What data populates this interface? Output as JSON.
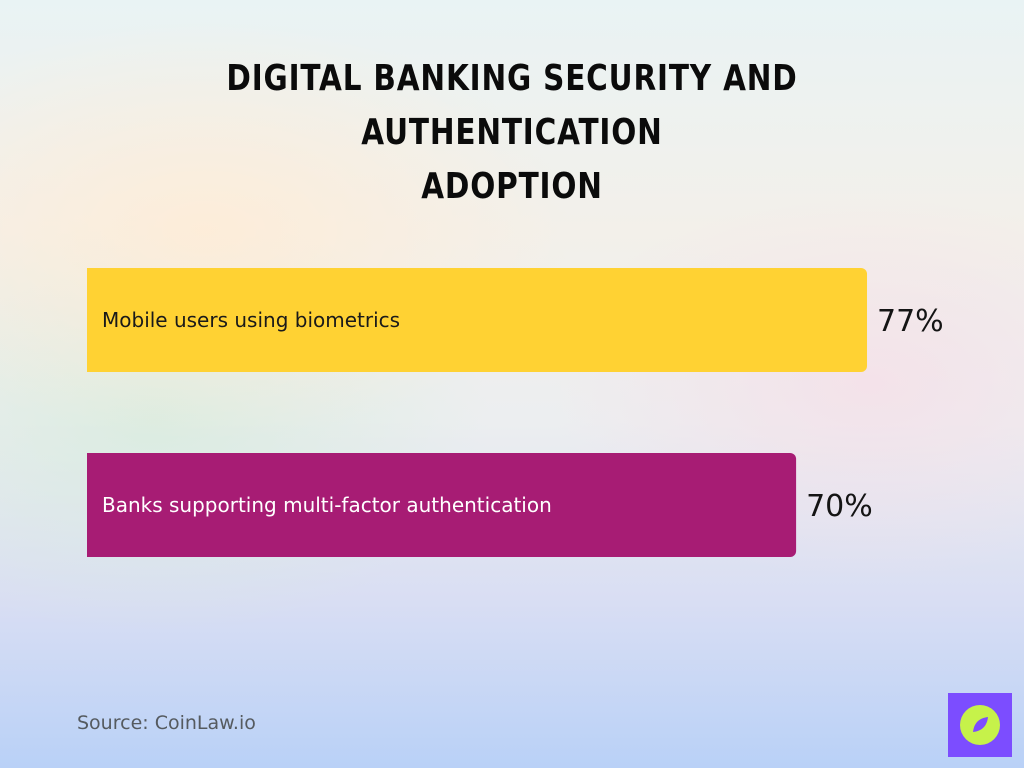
{
  "chart_data": {
    "type": "bar",
    "orientation": "horizontal",
    "title": "Digital Banking Security and Authentication Adoption",
    "categories": [
      "Mobile users using biometrics",
      "Banks supporting multi-factor authentication"
    ],
    "values": [
      77,
      70
    ],
    "value_labels": [
      "77%",
      "70%"
    ],
    "unit": "%",
    "xlim": [
      0,
      100
    ],
    "grid": false,
    "legend": "none",
    "colors": [
      "#ffd233",
      "#a71c74"
    ],
    "label_colors": [
      "#1a1a1a",
      "#ffffff"
    ]
  },
  "title": {
    "line1": "Digital Banking Security and Authentication",
    "line2": "Adoption"
  },
  "footer": {
    "source": "Source: CoinLaw.io",
    "logo_icon": "compass-leaf-icon",
    "logo_bg": "#7c4dff",
    "logo_fg": "#c6f24a"
  }
}
